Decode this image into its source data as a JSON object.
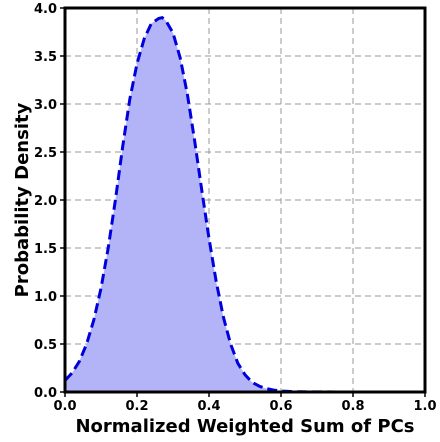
{
  "chart_data": {
    "type": "area",
    "title": "",
    "xlabel": "Normalized Weighted Sum of PCs",
    "ylabel": "Probability Density",
    "xlim": [
      0.0,
      1.0
    ],
    "ylim": [
      0.0,
      4.0
    ],
    "xticks": [
      "0.0",
      "0.2",
      "0.4",
      "0.6",
      "0.8",
      "1.0"
    ],
    "yticks": [
      "0.0",
      "0.5",
      "1.0",
      "1.5",
      "2.0",
      "2.5",
      "3.0",
      "3.5",
      "4.0"
    ],
    "grid": true,
    "series": [
      {
        "line_style": "dashed",
        "line_color": "#0000dd",
        "fill_color": "#b3b3f7",
        "x": [
          0.0,
          0.02,
          0.04,
          0.06,
          0.08,
          0.1,
          0.12,
          0.14,
          0.16,
          0.18,
          0.2,
          0.22,
          0.24,
          0.26,
          0.27,
          0.28,
          0.3,
          0.32,
          0.34,
          0.36,
          0.38,
          0.4,
          0.42,
          0.44,
          0.46,
          0.48,
          0.5,
          0.52,
          0.54,
          0.56,
          0.58,
          0.6,
          0.62,
          0.64,
          0.66,
          0.7,
          0.8,
          0.9,
          1.0
        ],
        "y": [
          0.12,
          0.2,
          0.32,
          0.5,
          0.75,
          1.08,
          1.5,
          2.0,
          2.55,
          3.05,
          3.42,
          3.68,
          3.84,
          3.89,
          3.9,
          3.87,
          3.74,
          3.48,
          3.1,
          2.62,
          2.1,
          1.6,
          1.15,
          0.78,
          0.5,
          0.3,
          0.18,
          0.1,
          0.06,
          0.035,
          0.02,
          0.01,
          0.006,
          0.003,
          0.002,
          0.001,
          0.0,
          0.0,
          0.0
        ]
      }
    ]
  }
}
